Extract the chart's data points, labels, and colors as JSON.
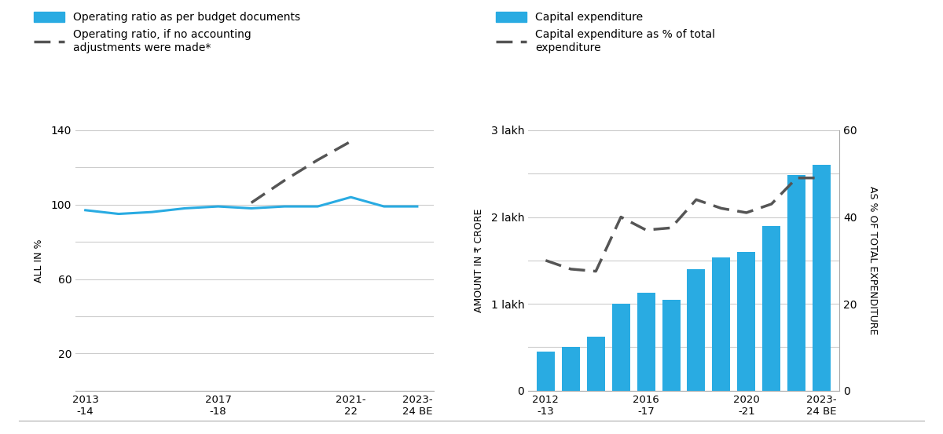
{
  "left_chart": {
    "ylabel": "ALL IN %",
    "xlabels": [
      "2013\n-14",
      "2017\n-18",
      "2021-\n22",
      "2023-\n24 BE"
    ],
    "x_positions": [
      0,
      4,
      8,
      10
    ],
    "blue_line_x": [
      0,
      1,
      2,
      3,
      4,
      5,
      6,
      7,
      8,
      9,
      10
    ],
    "blue_line_y": [
      97,
      95,
      96,
      98,
      99,
      98,
      99,
      99,
      104,
      99,
      99
    ],
    "dashed_line_x": [
      5,
      6,
      7,
      8
    ],
    "dashed_line_y": [
      101,
      113,
      124,
      134
    ],
    "ylim": [
      0,
      140
    ],
    "yticks": [
      20,
      60,
      100,
      140
    ],
    "yticks_all": [
      0,
      20,
      40,
      60,
      80,
      100,
      120,
      140
    ],
    "blue_color": "#29ABE2",
    "dash_color": "#555555",
    "grid_color": "#cccccc"
  },
  "right_chart": {
    "ylabel_left": "AMOUNT IN ₹ CRORE",
    "ylabel_right": "AS % OF TOTAL EXPENDITURE",
    "xlabels": [
      "2012\n-13",
      "2016\n-17",
      "2020\n-21",
      "2023-\n24 BE"
    ],
    "bar_x": [
      0,
      1,
      2,
      3,
      4,
      5,
      6,
      7,
      8,
      9,
      10,
      11
    ],
    "bar_heights": [
      45000,
      50000,
      62000,
      100000,
      113000,
      105000,
      140000,
      153000,
      160000,
      190000,
      248000,
      260000
    ],
    "dashed_line_x": [
      0,
      1,
      2,
      3,
      4,
      5,
      6,
      7,
      8,
      9,
      10,
      11
    ],
    "dashed_line_y": [
      30,
      28,
      27.5,
      40,
      37,
      37.5,
      44,
      42,
      41,
      43,
      49,
      49
    ],
    "ylim_left": [
      0,
      300000
    ],
    "ylim_right": [
      0,
      60
    ],
    "yticks_left": [
      0,
      100000,
      200000,
      300000
    ],
    "ytick_labels_left": [
      "0",
      "1 lakh",
      "2 lakh",
      "3 lakh"
    ],
    "yticks_right": [
      0,
      20,
      40,
      60
    ],
    "yticks_all_left": [
      0,
      50000,
      100000,
      150000,
      200000,
      250000,
      300000
    ],
    "blue_color": "#29ABE2",
    "dash_color": "#555555",
    "grid_color": "#cccccc"
  },
  "legend": {
    "left_blue_label": "Operating ratio as per budget documents",
    "left_dash_label": "Operating ratio, if no accounting\nadjustments were made*",
    "right_blue_label": "Capital expenditure",
    "right_dash_label": "Capital expenditure as % of total\nexpenditure"
  },
  "background_color": "#ffffff",
  "text_color": "#333333"
}
